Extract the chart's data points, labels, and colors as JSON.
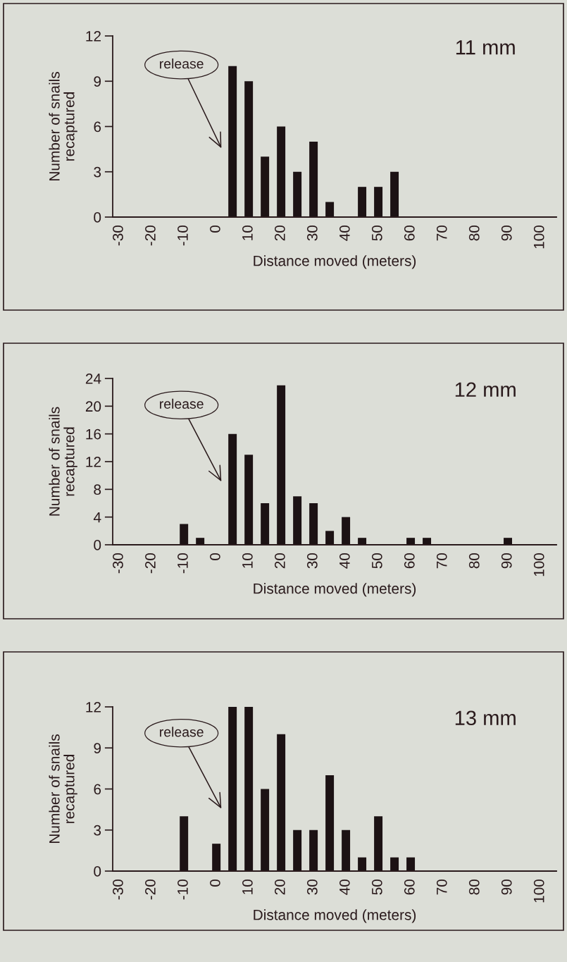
{
  "chart_data": [
    {
      "type": "bar",
      "title": "11 mm",
      "xlabel": "Distance moved (meters)",
      "ylabel": "Number of snails\nrecaptured",
      "x": [
        5,
        10,
        15,
        20,
        25,
        30,
        35,
        40,
        45,
        50,
        55
      ],
      "values": [
        10,
        9,
        4,
        6,
        3,
        5,
        1,
        0,
        2,
        2,
        3
      ],
      "color": "#1c1214",
      "xlim": [
        -32,
        105
      ],
      "xticks": [
        -30,
        -20,
        -10,
        0,
        10,
        20,
        30,
        40,
        50,
        60,
        70,
        80,
        90,
        100
      ],
      "ylim": [
        0,
        12
      ],
      "yticks": [
        0,
        3,
        6,
        9,
        12
      ],
      "grid": false,
      "annotations": [
        "release"
      ]
    },
    {
      "type": "bar",
      "title": "12 mm",
      "xlabel": "Distance moved (meters)",
      "ylabel": "Number of snails\nrecaptured",
      "x": [
        -10,
        -5,
        0,
        5,
        10,
        15,
        20,
        25,
        30,
        35,
        40,
        45,
        60,
        65,
        90
      ],
      "values": [
        3,
        1,
        0,
        16,
        13,
        6,
        23,
        7,
        6,
        2,
        4,
        1,
        1,
        1,
        1
      ],
      "color": "#1c1214",
      "xlim": [
        -32,
        105
      ],
      "xticks": [
        -30,
        -20,
        -10,
        0,
        10,
        20,
        30,
        40,
        50,
        60,
        70,
        80,
        90,
        100
      ],
      "ylim": [
        0,
        24
      ],
      "yticks": [
        0,
        4,
        8,
        12,
        16,
        20,
        24
      ],
      "grid": false,
      "annotations": [
        "release"
      ]
    },
    {
      "type": "bar",
      "title": "13 mm",
      "xlabel": "Distance moved (meters)",
      "ylabel": "Number of snails\nrecaptured",
      "x": [
        -10,
        0,
        5,
        10,
        15,
        20,
        25,
        30,
        35,
        40,
        45,
        50,
        55,
        60
      ],
      "values": [
        4,
        2,
        12,
        12,
        6,
        10,
        3,
        3,
        7,
        3,
        1,
        4,
        1,
        1
      ],
      "color": "#1c1214",
      "xlim": [
        -32,
        105
      ],
      "xticks": [
        -30,
        -20,
        -10,
        0,
        10,
        20,
        30,
        40,
        50,
        60,
        70,
        80,
        90,
        100
      ],
      "ylim": [
        0,
        12
      ],
      "yticks": [
        0,
        3,
        6,
        9,
        12
      ],
      "grid": false,
      "annotations": [
        "release"
      ]
    }
  ]
}
